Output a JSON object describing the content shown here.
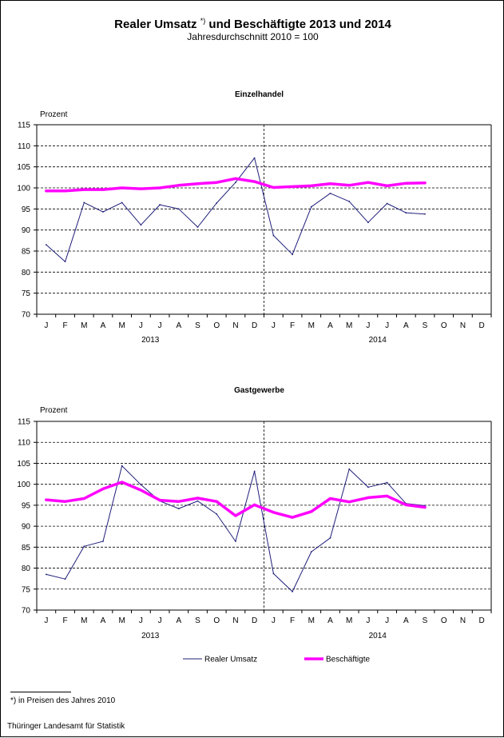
{
  "header": {
    "title": "Realer Umsatz",
    "title_marker": "*)",
    "title_rest": "und Beschäftigte 2013 und 2014",
    "subtitle": "Jahresdurchschnitt 2010 = 100"
  },
  "footnote": "*) in Preisen des Jahres 2010",
  "source": "Thüringer Landesamt für Statistik",
  "colors": {
    "umsatz": "#1f1f7a",
    "beschaeftigte": "#ff00ff",
    "grid": "#000000"
  },
  "chart_data": [
    {
      "type": "line",
      "title": "Einzelhandel",
      "ylabel": "Prozent",
      "ylim": [
        70,
        115
      ],
      "yticks": [
        "70",
        "75",
        "80",
        "85",
        "90",
        "95",
        "100",
        "105",
        "110",
        "115"
      ],
      "categories": [
        "J",
        "F",
        "M",
        "A",
        "M",
        "J",
        "J",
        "A",
        "S",
        "O",
        "N",
        "D",
        "J",
        "F",
        "M",
        "A",
        "M",
        "J",
        "J",
        "A",
        "S",
        "O",
        "N",
        "D"
      ],
      "year_labels": [
        "2013",
        "2014"
      ],
      "grid": true,
      "series": [
        {
          "name": "Realer Umsatz",
          "values": [
            86.5,
            82.5,
            96.5,
            94.3,
            96.5,
            91.2,
            96.0,
            95.0,
            90.7,
            96.4,
            101.3,
            107.1,
            88.7,
            84.2,
            95.5,
            98.7,
            96.8,
            91.8,
            96.3,
            94.1,
            93.8,
            null,
            null,
            null
          ]
        },
        {
          "name": "Beschäftigte",
          "values": [
            99.3,
            99.3,
            99.6,
            99.6,
            100.0,
            99.8,
            100.0,
            100.6,
            101.0,
            101.3,
            102.2,
            101.5,
            100.1,
            100.3,
            100.5,
            101.0,
            100.6,
            101.3,
            100.5,
            101.1,
            101.2,
            null,
            null,
            null
          ]
        }
      ]
    },
    {
      "type": "line",
      "title": "Gastgewerbe",
      "ylabel": "Prozent",
      "ylim": [
        70,
        115
      ],
      "yticks": [
        "70",
        "75",
        "80",
        "85",
        "90",
        "95",
        "100",
        "105",
        "110",
        "115"
      ],
      "categories": [
        "J",
        "F",
        "M",
        "A",
        "M",
        "J",
        "J",
        "A",
        "S",
        "O",
        "N",
        "D",
        "J",
        "F",
        "M",
        "A",
        "M",
        "J",
        "J",
        "A",
        "S",
        "O",
        "N",
        "D"
      ],
      "year_labels": [
        "2013",
        "2014"
      ],
      "grid": true,
      "legend": "bottom",
      "series": [
        {
          "name": "Realer Umsatz",
          "values": [
            78.5,
            77.4,
            85.2,
            86.4,
            104.4,
            99.9,
            96.0,
            94.2,
            96.0,
            92.9,
            86.4,
            103.1,
            78.7,
            74.4,
            83.9,
            87.2,
            103.6,
            99.3,
            100.4,
            95.4,
            94.9,
            null,
            null,
            null
          ]
        },
        {
          "name": "Beschäftigte",
          "values": [
            96.3,
            95.9,
            96.6,
            98.9,
            100.5,
            98.6,
            96.2,
            95.9,
            96.7,
            95.9,
            92.5,
            95.1,
            93.3,
            92.1,
            93.5,
            96.6,
            95.8,
            96.8,
            97.2,
            95.1,
            94.5,
            null,
            null,
            null
          ]
        }
      ]
    }
  ]
}
